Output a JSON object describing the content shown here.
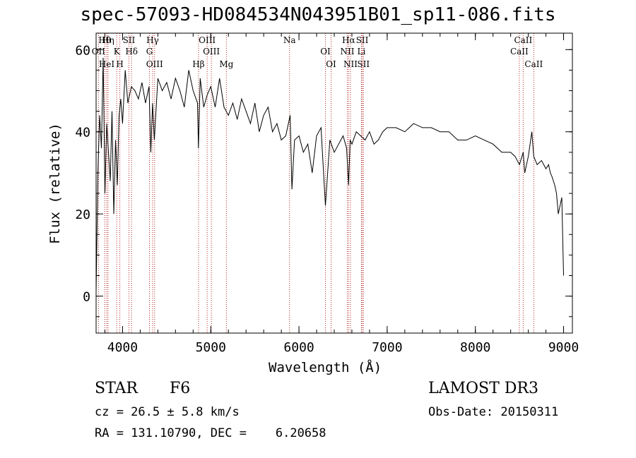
{
  "chart_data": {
    "type": "line",
    "title": "spec-57093-HD084534N043951B01_sp11-086.fits",
    "xlabel": "Wavelength (Å)",
    "ylabel": "Flux (relative)",
    "xlim": [
      3700,
      9100
    ],
    "ylim": [
      -9,
      64
    ],
    "xticks": [
      4000,
      5000,
      6000,
      7000,
      8000,
      9000
    ],
    "yticks": [
      0,
      20,
      40,
      60
    ],
    "series": [
      {
        "name": "spectrum",
        "x": [
          3700,
          3720,
          3740,
          3760,
          3780,
          3800,
          3820,
          3840,
          3860,
          3880,
          3900,
          3920,
          3940,
          3960,
          3980,
          4000,
          4030,
          4060,
          4100,
          4140,
          4180,
          4220,
          4260,
          4300,
          4320,
          4340,
          4360,
          4400,
          4450,
          4500,
          4550,
          4600,
          4650,
          4700,
          4750,
          4800,
          4850,
          4860,
          4880,
          4920,
          4960,
          5000,
          5050,
          5100,
          5150,
          5200,
          5250,
          5300,
          5350,
          5400,
          5450,
          5500,
          5550,
          5600,
          5650,
          5700,
          5750,
          5800,
          5850,
          5900,
          5920,
          5950,
          6000,
          6050,
          6100,
          6150,
          6200,
          6250,
          6300,
          6350,
          6400,
          6450,
          6500,
          6540,
          6563,
          6580,
          6600,
          6650,
          6700,
          6750,
          6800,
          6850,
          6900,
          6950,
          7000,
          7100,
          7200,
          7300,
          7400,
          7500,
          7600,
          7700,
          7800,
          7900,
          8000,
          8100,
          8200,
          8300,
          8400,
          8450,
          8500,
          8542,
          8560,
          8600,
          8640,
          8662,
          8700,
          8750,
          8800,
          8830,
          8850,
          8870,
          8900,
          8920,
          8940,
          8960,
          8980,
          9000
        ],
        "values": [
          1,
          30,
          44,
          36,
          58,
          25,
          42,
          35,
          28,
          45,
          20,
          38,
          27,
          44,
          48,
          42,
          55,
          47,
          51,
          50,
          48,
          52,
          47,
          51,
          35,
          47,
          38,
          53,
          50,
          52,
          48,
          53,
          50,
          46,
          55,
          50,
          47,
          36,
          53,
          46,
          49,
          51,
          46,
          53,
          46,
          44,
          47,
          43,
          48,
          45,
          42,
          47,
          40,
          44,
          46,
          40,
          42,
          38,
          39,
          44,
          26,
          38,
          39,
          35,
          37,
          30,
          39,
          41,
          22,
          38,
          35,
          37,
          39,
          36,
          27,
          38,
          37,
          40,
          39,
          38,
          40,
          37,
          38,
          40,
          41,
          41,
          40,
          42,
          41,
          41,
          40,
          40,
          38,
          38,
          39,
          38,
          37,
          35,
          35,
          34,
          32,
          35,
          30,
          34,
          40,
          34,
          32,
          33,
          31,
          32,
          30,
          29,
          27,
          25,
          20,
          22,
          24,
          5
        ]
      }
    ],
    "line_labels": [
      {
        "label": "Hθ",
        "x": 3798
      },
      {
        "label": "OII",
        "x": 3727
      },
      {
        "label": "HeI",
        "x": 3820
      },
      {
        "label": "Hη",
        "x": 3835
      },
      {
        "label": "K",
        "x": 3934
      },
      {
        "label": "H",
        "x": 3969
      },
      {
        "label": "SII",
        "x": 4072
      },
      {
        "label": "Hδ",
        "x": 4102
      },
      {
        "label": "OIII",
        "x": 4363
      },
      {
        "label": "Hγ",
        "x": 4341
      },
      {
        "label": "G",
        "x": 4305
      },
      {
        "label": "Hβ",
        "x": 4861
      },
      {
        "label": "OIII",
        "x": 4959
      },
      {
        "label": "OIII",
        "x": 5007
      },
      {
        "label": "Mg",
        "x": 5177
      },
      {
        "label": "Na",
        "x": 5893
      },
      {
        "label": "OI",
        "x": 6300
      },
      {
        "label": "OI",
        "x": 6364
      },
      {
        "label": "Hα",
        "x": 6563
      },
      {
        "label": "NII",
        "x": 6548
      },
      {
        "label": "NII",
        "x": 6584
      },
      {
        "label": "SII",
        "x": 6717
      },
      {
        "label": "Li",
        "x": 6708
      },
      {
        "label": "SII",
        "x": 6731
      },
      {
        "label": "CaII",
        "x": 8542
      },
      {
        "label": "CaII",
        "x": 8498
      },
      {
        "label": "CaII",
        "x": 8662
      }
    ]
  },
  "info": {
    "object_class": "STAR",
    "subclass": "F6",
    "survey": "LAMOST DR3",
    "cz": "cz = 26.5 ± 5.8 km/s",
    "obs_date": "Obs-Date: 20150311",
    "coords": "RA = 131.10790, DEC =    6.20658"
  },
  "colors": {
    "axes": "#000000",
    "spectrum": "#000000",
    "lines": "#b22222"
  }
}
